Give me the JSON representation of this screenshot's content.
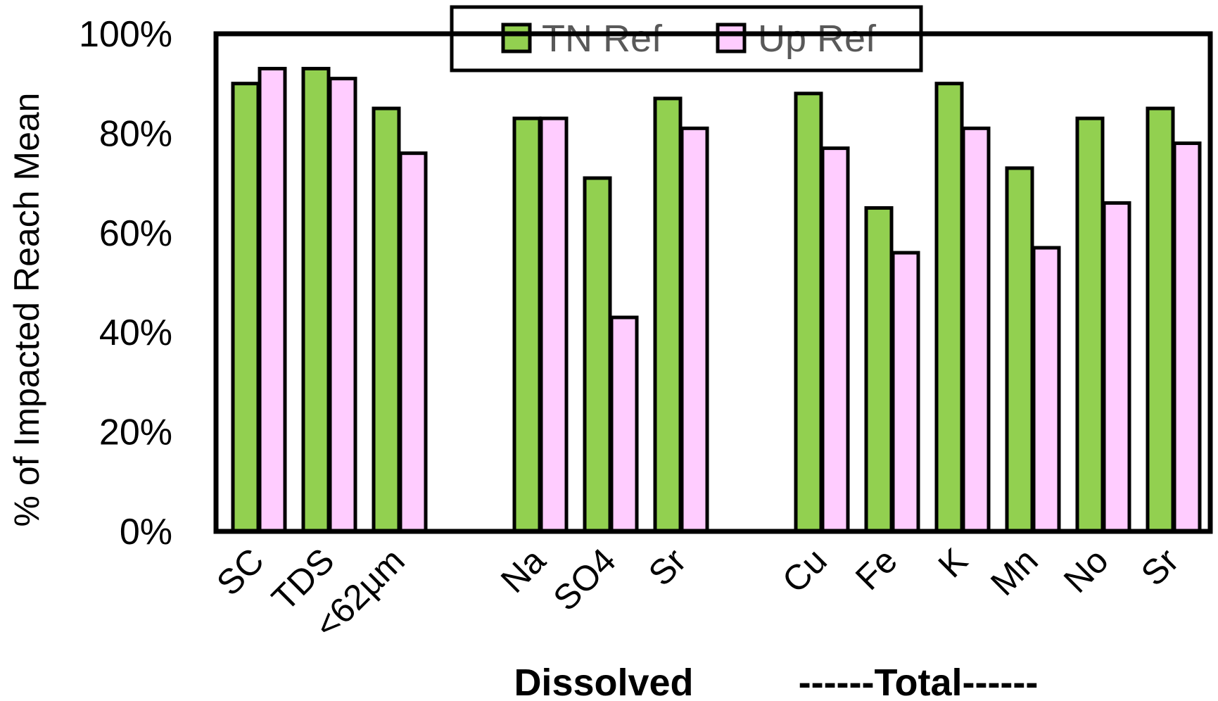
{
  "chart_data": {
    "type": "bar",
    "ylabel": "% of Impacted Reach Mean",
    "ylim": [
      0,
      100
    ],
    "y_ticks": [
      "0%",
      "20%",
      "40%",
      "60%",
      "80%",
      "100%"
    ],
    "legend_position": "top",
    "categories": [
      "SC",
      "TDS",
      "<62µm",
      "Na",
      "SO4",
      "Sr",
      "Cu",
      "Fe",
      "K",
      "Mn",
      "No",
      "Sr"
    ],
    "groups": [
      {
        "label": "",
        "categories": [
          "SC",
          "TDS",
          "<62µm"
        ]
      },
      {
        "label": "Dissolved",
        "categories": [
          "Na",
          "SO4",
          "Sr"
        ]
      },
      {
        "label": "------Total------",
        "categories": [
          "Cu",
          "Fe",
          "K",
          "Mn",
          "No",
          "Sr"
        ]
      }
    ],
    "series": [
      {
        "name": "TN Ref",
        "color": "#92d050",
        "values": [
          90,
          93,
          85,
          83,
          71,
          87,
          88,
          65,
          90,
          73,
          83,
          85
        ]
      },
      {
        "name": "Up Ref",
        "color": "#ffccff",
        "values": [
          93,
          91,
          76,
          83,
          43,
          81,
          77,
          56,
          81,
          57,
          66,
          78
        ]
      }
    ],
    "grid": false
  }
}
